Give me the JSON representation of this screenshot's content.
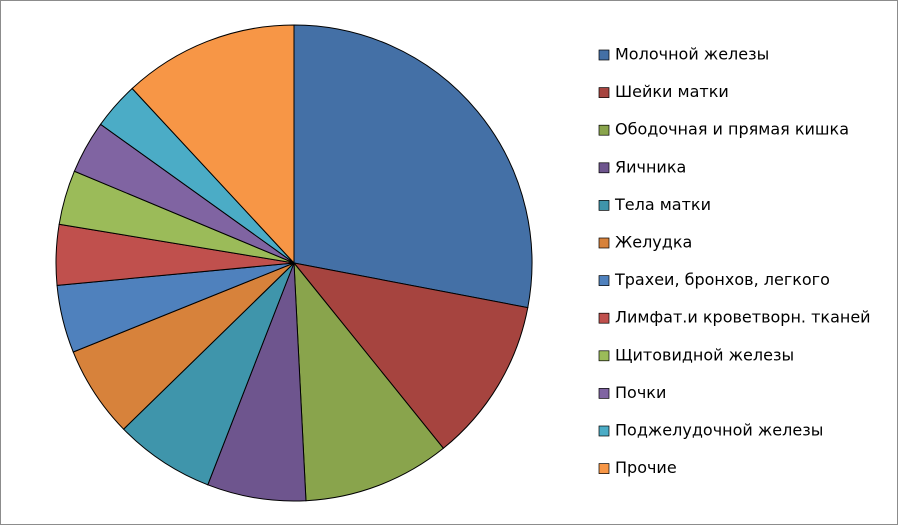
{
  "chart_data": {
    "type": "pie",
    "categories": [
      "Молочной железы",
      "Шейки матки",
      "Ободочная и прямая кишка",
      "Яичника",
      "Тела матки",
      "Желудка",
      "Трахеи, бронхов, легкого",
      "Лимфат.и кроветворн. тканей",
      "Щитовидной железы",
      "Почки",
      "Поджелудочной железы",
      "Прочие"
    ],
    "values": [
      28.0,
      11.2,
      10.0,
      6.7,
      6.8,
      6.2,
      4.6,
      4.1,
      3.7,
      3.6,
      3.2,
      11.9
    ],
    "colors": [
      "#4470a6",
      "#a6443f",
      "#89a44c",
      "#6e558e",
      "#3f95ab",
      "#d7823b",
      "#4f81bd",
      "#c0504d",
      "#9bbb59",
      "#8064a2",
      "#4bacc6",
      "#f79646"
    ],
    "legend": "right"
  }
}
